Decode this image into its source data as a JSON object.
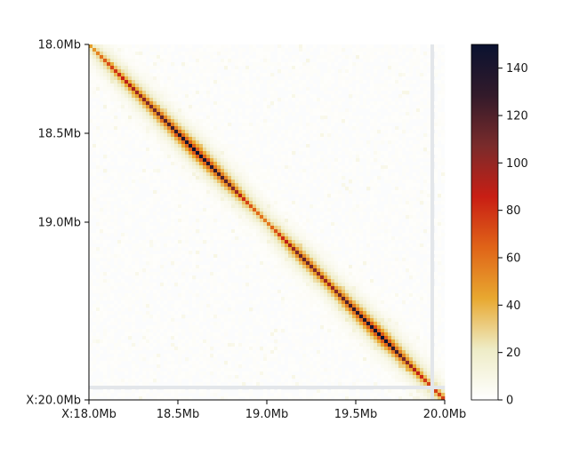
{
  "chart_data": {
    "type": "heatmap",
    "title": "",
    "xlabel": "",
    "ylabel": "",
    "x_range_mb": [
      18.0,
      20.0
    ],
    "y_range_mb": [
      18.0,
      20.0
    ],
    "x_ticks": [
      {
        "value": 18.0,
        "label": "X:18.0Mb"
      },
      {
        "value": 18.5,
        "label": "18.5Mb"
      },
      {
        "value": 19.0,
        "label": "19.0Mb"
      },
      {
        "value": 19.5,
        "label": "19.5Mb"
      },
      {
        "value": 20.0,
        "label": "20.0Mb"
      }
    ],
    "y_ticks": [
      {
        "value": 18.0,
        "label": "18.0Mb"
      },
      {
        "value": 18.5,
        "label": "18.5Mb"
      },
      {
        "value": 19.0,
        "label": "19.0Mb"
      },
      {
        "value": 20.0,
        "label": "X:20.0Mb"
      }
    ],
    "bin_size_mb": 0.02,
    "diagonal_profile": [
      {
        "pos": 18.02,
        "value": 45
      },
      {
        "pos": 18.1,
        "value": 70
      },
      {
        "pos": 18.25,
        "value": 95
      },
      {
        "pos": 18.45,
        "value": 120
      },
      {
        "pos": 18.6,
        "value": 150
      },
      {
        "pos": 18.8,
        "value": 110
      },
      {
        "pos": 18.9,
        "value": 70
      },
      {
        "pos": 19.0,
        "value": 55
      },
      {
        "pos": 19.2,
        "value": 115
      },
      {
        "pos": 19.35,
        "value": 95
      },
      {
        "pos": 19.5,
        "value": 130
      },
      {
        "pos": 19.65,
        "value": 150
      },
      {
        "pos": 19.8,
        "value": 100
      },
      {
        "pos": 19.9,
        "value": 75
      }
    ],
    "masked_bins_mb": [
      19.93
    ],
    "colorbar": {
      "min": 0,
      "max": 150,
      "ticks": [
        0,
        20,
        40,
        60,
        80,
        100,
        120,
        140
      ],
      "colors": [
        "#ffffff",
        "#eeecc6",
        "#e8a830",
        "#e06418",
        "#c81e14",
        "#7a2b2b",
        "#321a2a",
        "#0a1230"
      ]
    }
  }
}
